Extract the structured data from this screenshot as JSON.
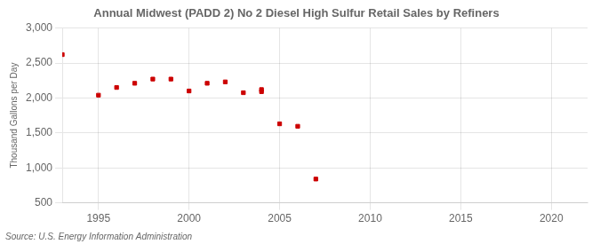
{
  "chart_data": {
    "type": "scatter",
    "title": "Annual Midwest (PADD 2) No 2 Diesel High Sulfur Retail Sales by Refiners",
    "ylabel": "Thousand Gallons per Day",
    "annotations": [
      "Source: U.S. Energy Information Administration"
    ],
    "x": [
      1993,
      1995,
      1996,
      1997,
      1998,
      1999,
      2000,
      2001,
      2002,
      2003,
      2004,
      2004,
      2005,
      2006,
      2007
    ],
    "values": [
      2620,
      2040,
      2150,
      2210,
      2270,
      2270,
      2100,
      2210,
      2230,
      2075,
      2090,
      2120,
      1630,
      1595,
      840
    ],
    "color": "#cc0000",
    "marker": "square",
    "xlim": [
      1993,
      2022
    ],
    "xticks": [
      1995,
      2000,
      2005,
      2010,
      2015,
      2020
    ],
    "ylim": [
      500,
      3000
    ],
    "yticks": [
      500,
      {
        "value": 1000,
        "label": "1,000"
      },
      {
        "value": 1500,
        "label": "1,500"
      },
      {
        "value": 2000,
        "label": "2,000"
      },
      {
        "value": 2500,
        "label": "2,500"
      },
      {
        "value": 3000,
        "label": "3,000"
      }
    ],
    "grid": true
  }
}
